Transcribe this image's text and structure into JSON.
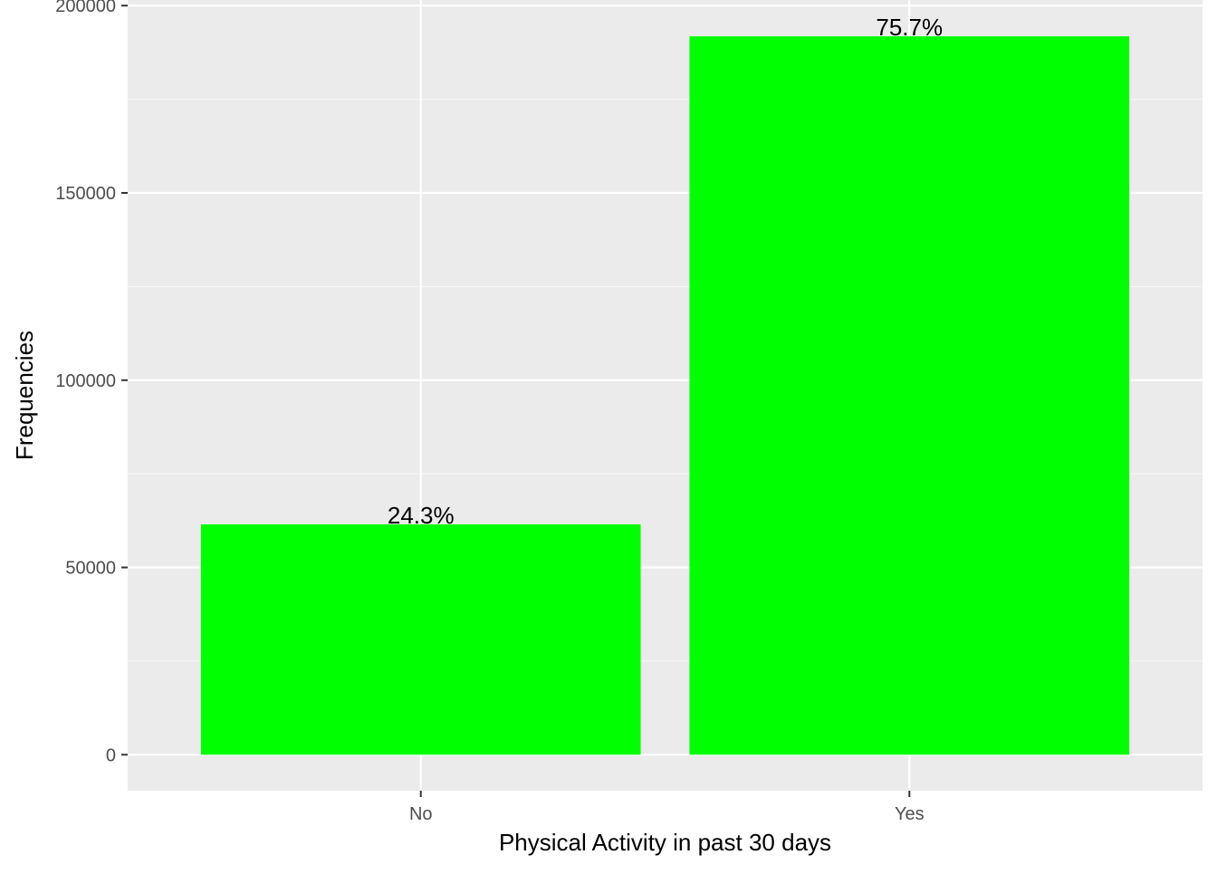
{
  "chart_data": {
    "type": "bar",
    "title": "",
    "xlabel": "Physical Activity in past 30 days",
    "ylabel": "Frequencies",
    "categories": [
      "No",
      "Yes"
    ],
    "values": [
      61500,
      191800
    ],
    "data_labels": [
      "24.3%",
      "75.7%"
    ],
    "ylim": [
      -9600,
      201500
    ],
    "y_ticks": [
      0,
      50000,
      100000,
      150000,
      200000
    ],
    "y_tick_labels": [
      "0",
      "50000",
      "100000",
      "150000",
      "200000"
    ],
    "y_minor_ticks": [
      25000,
      75000,
      125000,
      175000
    ],
    "grid": true,
    "legend": "none"
  },
  "colors": {
    "bar_fill": "#00ff00",
    "panel_background": "#ebebeb",
    "grid_major": "#ffffff",
    "grid_minor": "#f7f7f7",
    "tick_mark": "#333333",
    "tick_label": "#4d4d4d",
    "text": "#000000"
  }
}
